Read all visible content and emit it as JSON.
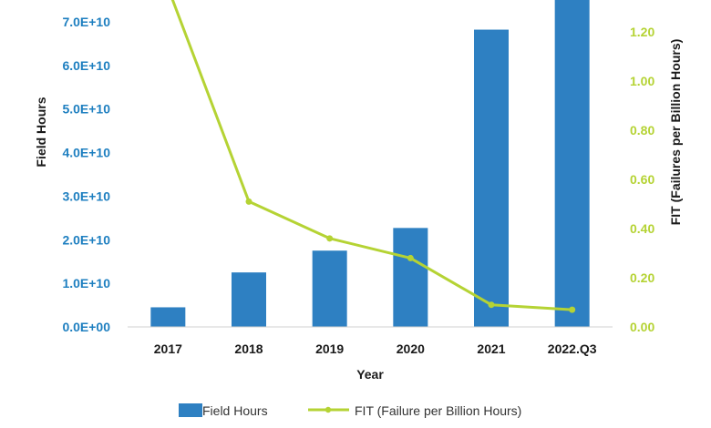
{
  "chart_data": {
    "type": "bar",
    "categories": [
      "2017",
      "2018",
      "2019",
      "2020",
      "2021",
      "2022.Q3"
    ],
    "xlabel": "Year",
    "ylabel": "Field Hours",
    "y2label": "FIT (Failures per Billion Hours)",
    "ylim": [
      0,
      75000000000
    ],
    "y2lim": [
      0,
      1.33
    ],
    "y_ticks": [
      "0.0E+00",
      "1.0E+10",
      "2.0E+10",
      "3.0E+10",
      "4.0E+10",
      "5.0E+10",
      "6.0E+10",
      "7.0E+10"
    ],
    "y2_ticks": [
      "0.00",
      "0.20",
      "0.40",
      "0.60",
      "0.80",
      "1.00",
      "1.20"
    ],
    "series": [
      {
        "name": "Field Hours",
        "type": "bar",
        "axis": "left",
        "color": "#2e80c2",
        "values": [
          4500000000,
          12500000000,
          17500000000,
          22700000000,
          68200000000,
          76000000000
        ]
      },
      {
        "name": "FIT (Failure per Billion Hours)",
        "type": "line",
        "axis": "right",
        "color": "#b5d334",
        "values": [
          1.38,
          0.51,
          0.36,
          0.28,
          0.09,
          0.07
        ]
      }
    ],
    "grid": false,
    "legend": "bottom",
    "colors": {
      "left_axis_text": "#1e7fc0",
      "right_axis_text": "#b5d334"
    }
  }
}
